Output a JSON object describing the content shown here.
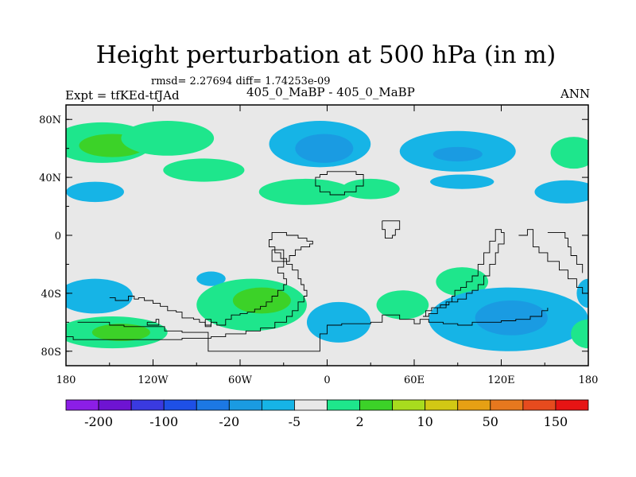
{
  "chart_data": {
    "type": "heatmap",
    "title": "Height perturbation at 500 hPa (in m)",
    "stats_line": "rmsd= 2.27694 diff= 1.74253e-09",
    "left_label": "Expt = tfKEd-tfJAd",
    "center_label": "405_0_MaBP - 405_0_MaBP",
    "right_label": "ANN",
    "x_ticks": [
      {
        "value": -180,
        "label": "180"
      },
      {
        "value": -120,
        "label": "120W"
      },
      {
        "value": -60,
        "label": "60W"
      },
      {
        "value": 0,
        "label": "0"
      },
      {
        "value": 60,
        "label": "60E"
      },
      {
        "value": 120,
        "label": "120E"
      },
      {
        "value": 180,
        "label": "180"
      }
    ],
    "y_ticks": [
      {
        "value": 80,
        "label": "80N"
      },
      {
        "value": 40,
        "label": "40N"
      },
      {
        "value": 0,
        "label": "0"
      },
      {
        "value": -40,
        "label": "40S"
      },
      {
        "value": -80,
        "label": "80S"
      }
    ],
    "xlim": [
      -180,
      180
    ],
    "ylim": [
      -90,
      90
    ],
    "colorbar": {
      "colors": [
        "#8c1ee6",
        "#6e14d2",
        "#3a3ae0",
        "#1e50e6",
        "#1c78e4",
        "#1a9be2",
        "#16b4e6",
        "#e8e8e8",
        "#1ee68c",
        "#3cd228",
        "#a8dc1e",
        "#d2c814",
        "#e6a014",
        "#e6781e",
        "#e64b1e",
        "#e61414"
      ],
      "levels": [
        "-200",
        "-100",
        "-20",
        "-5",
        "2",
        "10",
        "50",
        "150"
      ]
    },
    "regions": [
      {
        "lon": -155,
        "lat": 64,
        "rlon": 35,
        "rlat": 14,
        "color": "#1ee68c"
      },
      {
        "lon": -148,
        "lat": 62,
        "rlon": 23,
        "rlat": 8,
        "color": "#3cd228"
      },
      {
        "lon": -110,
        "lat": 67,
        "rlon": 32,
        "rlat": 12,
        "color": "#1ee68c"
      },
      {
        "lon": -85,
        "lat": 45,
        "rlon": 28,
        "rlat": 8,
        "color": "#1ee68c"
      },
      {
        "lon": -160,
        "lat": 30,
        "rlon": 20,
        "rlat": 7,
        "color": "#16b4e6"
      },
      {
        "lon": -5,
        "lat": 63,
        "rlon": 35,
        "rlat": 16,
        "color": "#16b4e6"
      },
      {
        "lon": -2,
        "lat": 60,
        "rlon": 20,
        "rlat": 10,
        "color": "#1a9be2"
      },
      {
        "lon": -15,
        "lat": 30,
        "rlon": 32,
        "rlat": 9,
        "color": "#1ee68c"
      },
      {
        "lon": 30,
        "lat": 32,
        "rlon": 20,
        "rlat": 7,
        "color": "#1ee68c"
      },
      {
        "lon": 90,
        "lat": 58,
        "rlon": 40,
        "rlat": 14,
        "color": "#16b4e6"
      },
      {
        "lon": 90,
        "lat": 56,
        "rlon": 17,
        "rlat": 5,
        "color": "#1a9be2"
      },
      {
        "lon": 93,
        "lat": 37,
        "rlon": 22,
        "rlat": 5,
        "color": "#16b4e6"
      },
      {
        "lon": 170,
        "lat": 57,
        "rlon": 16,
        "rlat": 11,
        "color": "#1ee68c"
      },
      {
        "lon": 165,
        "lat": 30,
        "rlon": 22,
        "rlat": 8,
        "color": "#16b4e6"
      },
      {
        "lon": -160,
        "lat": -42,
        "rlon": 26,
        "rlat": 12,
        "color": "#16b4e6"
      },
      {
        "lon": -148,
        "lat": -67,
        "rlon": 38,
        "rlat": 11,
        "color": "#1ee68c"
      },
      {
        "lon": -142,
        "lat": -67,
        "rlon": 20,
        "rlat": 6,
        "color": "#3cd228"
      },
      {
        "lon": -80,
        "lat": -30,
        "rlon": 10,
        "rlat": 5,
        "color": "#16b4e6"
      },
      {
        "lon": -52,
        "lat": -48,
        "rlon": 38,
        "rlat": 18,
        "color": "#1ee68c"
      },
      {
        "lon": -45,
        "lat": -45,
        "rlon": 20,
        "rlat": 9,
        "color": "#3cd228"
      },
      {
        "lon": 8,
        "lat": -60,
        "rlon": 22,
        "rlat": 14,
        "color": "#16b4e6"
      },
      {
        "lon": 52,
        "lat": -48,
        "rlon": 18,
        "rlat": 10,
        "color": "#1ee68c"
      },
      {
        "lon": 93,
        "lat": -32,
        "rlon": 18,
        "rlat": 10,
        "color": "#1ee68c"
      },
      {
        "lon": 125,
        "lat": -58,
        "rlon": 55,
        "rlat": 22,
        "color": "#16b4e6"
      },
      {
        "lon": 127,
        "lat": -57,
        "rlon": 25,
        "rlat": 12,
        "color": "#1a9be2"
      },
      {
        "lon": 180,
        "lat": -68,
        "rlon": 12,
        "rlat": 10,
        "color": "#1ee68c"
      },
      {
        "lon": 180,
        "lat": -40,
        "rlon": 8,
        "rlat": 10,
        "color": "#16b4e6"
      }
    ],
    "coastlines": [
      [
        [
          -150,
          -43
        ],
        [
          -146,
          -45
        ],
        [
          -140,
          -45
        ],
        [
          -137,
          -42
        ],
        [
          -133,
          -44
        ],
        [
          -130,
          -43
        ],
        [
          -126,
          -45
        ],
        [
          -120,
          -47
        ],
        [
          -115,
          -49
        ],
        [
          -110,
          -52
        ],
        [
          -104,
          -53
        ],
        [
          -100,
          -57
        ],
        [
          -92,
          -58
        ],
        [
          -88,
          -60
        ],
        [
          -84,
          -63
        ],
        [
          -80,
          -60
        ],
        [
          -76,
          -62
        ],
        [
          -70,
          -58
        ],
        [
          -66,
          -55
        ],
        [
          -60,
          -54
        ],
        [
          -55,
          -53
        ],
        [
          -50,
          -51
        ],
        [
          -46,
          -49
        ],
        [
          -42,
          -46
        ],
        [
          -38,
          -42
        ],
        [
          -34,
          -38
        ],
        [
          -30,
          -34
        ],
        [
          -28,
          -30
        ],
        [
          -30,
          -26
        ],
        [
          -34,
          -22
        ],
        [
          -30,
          -18
        ],
        [
          -26,
          -14
        ],
        [
          -22,
          -10
        ],
        [
          -18,
          -8
        ],
        [
          -12,
          -6
        ],
        [
          -10,
          -4
        ],
        [
          -14,
          -2
        ],
        [
          -20,
          0
        ],
        [
          -28,
          2
        ],
        [
          -34,
          2
        ],
        [
          -38,
          -3
        ],
        [
          -40,
          -8
        ],
        [
          -36,
          -12
        ],
        [
          -32,
          -16
        ],
        [
          -28,
          -20
        ],
        [
          -24,
          -24
        ],
        [
          -20,
          -30
        ],
        [
          -18,
          -34
        ],
        [
          -16,
          -38
        ],
        [
          -14,
          -42
        ],
        [
          -16,
          -46
        ],
        [
          -20,
          -52
        ],
        [
          -24,
          -56
        ],
        [
          -28,
          -60
        ],
        [
          -36,
          -64
        ],
        [
          -46,
          -66
        ],
        [
          -56,
          -68
        ],
        [
          -70,
          -70
        ],
        [
          -80,
          -71
        ],
        [
          -100,
          -72
        ],
        [
          -120,
          -72
        ],
        [
          -140,
          -72
        ],
        [
          -160,
          -72
        ],
        [
          -175,
          -70
        ],
        [
          -180,
          -70
        ]
      ],
      [
        [
          -172,
          -60
        ],
        [
          -160,
          -60
        ],
        [
          -150,
          -62
        ],
        [
          -140,
          -63
        ],
        [
          -125,
          -63
        ],
        [
          -112,
          -66
        ],
        [
          -100,
          -67
        ],
        [
          -82,
          -68
        ],
        [
          -82,
          -80
        ],
        [
          -10,
          -80
        ],
        [
          -5,
          -76
        ],
        [
          -5,
          -68
        ],
        [
          0,
          -62
        ],
        [
          10,
          -61
        ],
        [
          30,
          -60
        ],
        [
          38,
          -55
        ],
        [
          50,
          -58
        ],
        [
          60,
          -61
        ],
        [
          64,
          -58
        ],
        [
          70,
          -60
        ],
        [
          80,
          -61
        ],
        [
          90,
          -62
        ],
        [
          100,
          -60
        ],
        [
          110,
          -60
        ],
        [
          120,
          -59
        ],
        [
          130,
          -58
        ],
        [
          140,
          -56
        ],
        [
          148,
          -52
        ],
        [
          152,
          -50
        ]
      ],
      [
        [
          -84,
          -58
        ],
        [
          -84,
          -62
        ],
        [
          -80,
          -62
        ],
        [
          -80,
          -58
        ],
        [
          -84,
          -58
        ]
      ],
      [
        [
          -38,
          -10
        ],
        [
          -38,
          -18
        ],
        [
          -30,
          -18
        ],
        [
          -30,
          -10
        ],
        [
          -38,
          -10
        ]
      ],
      [
        [
          -5,
          42
        ],
        [
          0,
          44
        ],
        [
          8,
          44
        ],
        [
          16,
          44
        ],
        [
          20,
          42
        ],
        [
          25,
          40
        ],
        [
          25,
          34
        ],
        [
          20,
          30
        ],
        [
          12,
          28
        ],
        [
          5,
          28
        ],
        [
          2,
          30
        ],
        [
          -5,
          30
        ],
        [
          -5,
          34
        ],
        [
          -8,
          36
        ],
        [
          -8,
          40
        ],
        [
          -5,
          42
        ]
      ],
      [
        [
          38,
          10
        ],
        [
          48,
          10
        ],
        [
          50,
          8
        ],
        [
          50,
          4
        ],
        [
          47,
          4
        ],
        [
          47,
          0
        ],
        [
          45,
          -2
        ],
        [
          40,
          -2
        ],
        [
          40,
          4
        ],
        [
          38,
          4
        ],
        [
          38,
          10
        ]
      ],
      [
        [
          66,
          -56
        ],
        [
          70,
          -54
        ],
        [
          76,
          -50
        ],
        [
          82,
          -46
        ],
        [
          86,
          -42
        ],
        [
          88,
          -38
        ],
        [
          92,
          -36
        ],
        [
          96,
          -32
        ],
        [
          100,
          -28
        ],
        [
          104,
          -20
        ],
        [
          108,
          -12
        ],
        [
          112,
          -4
        ],
        [
          116,
          4
        ],
        [
          120,
          2
        ],
        [
          122,
          -6
        ],
        [
          118,
          -12
        ],
        [
          116,
          -20
        ],
        [
          112,
          -28
        ],
        [
          108,
          -34
        ],
        [
          104,
          -38
        ],
        [
          100,
          -40
        ],
        [
          96,
          -44
        ],
        [
          90,
          -46
        ],
        [
          84,
          -48
        ],
        [
          78,
          -50
        ],
        [
          72,
          -52
        ],
        [
          68,
          -56
        ],
        [
          66,
          -56
        ]
      ],
      [
        [
          132,
          0
        ],
        [
          138,
          4
        ],
        [
          142,
          0
        ],
        [
          142,
          -8
        ],
        [
          146,
          -12
        ],
        [
          152,
          -18
        ],
        [
          160,
          -24
        ],
        [
          166,
          -30
        ],
        [
          172,
          -36
        ],
        [
          176,
          -40
        ],
        [
          180,
          -42
        ]
      ],
      [
        [
          152,
          2
        ],
        [
          158,
          2
        ],
        [
          164,
          -2
        ],
        [
          166,
          -8
        ],
        [
          168,
          -14
        ],
        [
          172,
          -20
        ],
        [
          176,
          -26
        ]
      ],
      [
        [
          -124,
          -60
        ],
        [
          -118,
          -58
        ],
        [
          -116,
          -62
        ],
        [
          -122,
          -62
        ],
        [
          -124,
          -60
        ]
      ]
    ]
  }
}
